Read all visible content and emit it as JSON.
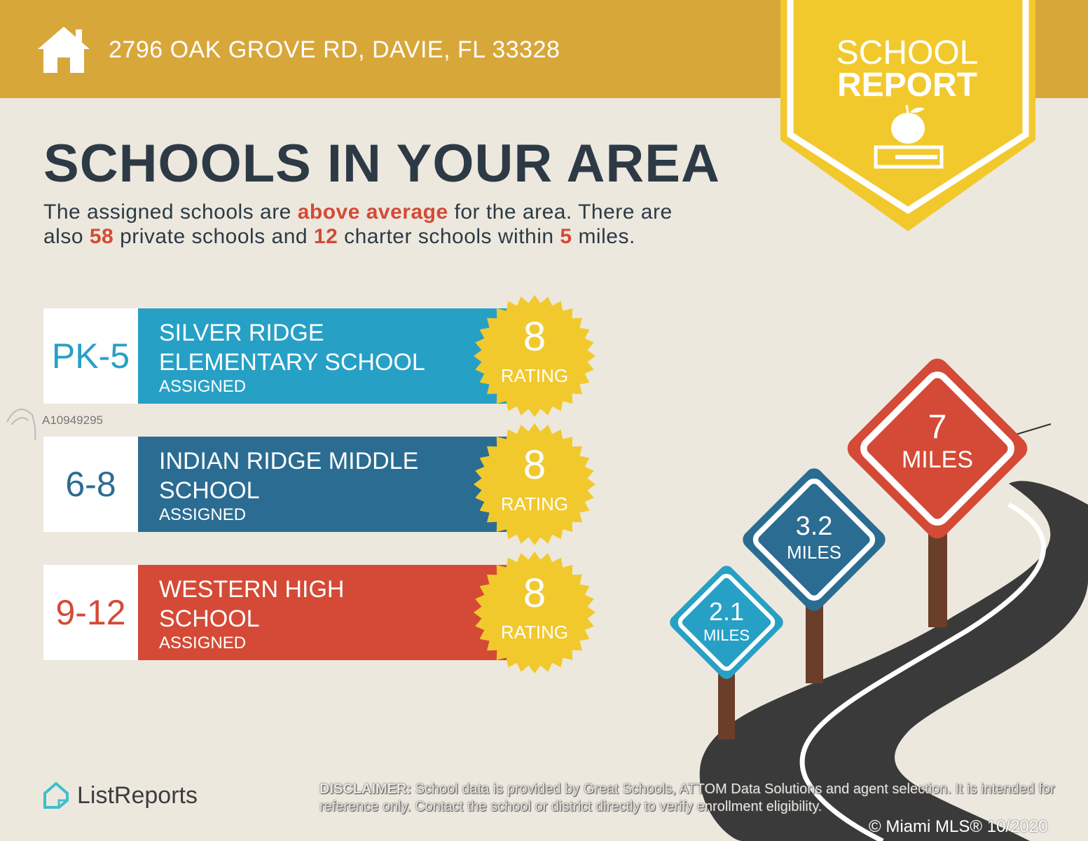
{
  "header": {
    "address": "2796 OAK GROVE RD, DAVIE, FL 33328",
    "icon": "house-icon",
    "color": "#d8a73a"
  },
  "banner": {
    "line1": "SCHOOL",
    "line2": "REPORT",
    "icon": "apple-on-book-icon",
    "color": "#f2c92c"
  },
  "title": "SCHOOLS IN YOUR AREA",
  "summary": {
    "p1": "The assigned schools are ",
    "highlight": "above average",
    "p2": " for the area. There are",
    "p3": "also ",
    "private_count": "58",
    "p4": " private schools and ",
    "charter_count": "12",
    "p5": " charter schools within ",
    "miles": "5",
    "p6": " miles."
  },
  "schools": [
    {
      "grades": "PK-5",
      "name1": "SILVER RIDGE",
      "name2": "ELEMENTARY SCHOOL",
      "status": "ASSIGNED",
      "rating": "8",
      "rating_label": "RATING",
      "color": "#27a0c6"
    },
    {
      "grades": "6-8",
      "name1": "INDIAN RIDGE MIDDLE",
      "name2": "SCHOOL",
      "status": "ASSIGNED",
      "rating": "8",
      "rating_label": "RATING",
      "color": "#2b6c92"
    },
    {
      "grades": "9-12",
      "name1": "WESTERN HIGH",
      "name2": "SCHOOL",
      "status": "ASSIGNED",
      "rating": "8",
      "rating_label": "RATING",
      "color": "#d44a36"
    }
  ],
  "distances": [
    {
      "value": "2.1",
      "unit": "MILES",
      "color": "#27a0c6"
    },
    {
      "value": "3.2",
      "unit": "MILES",
      "color": "#2b6c92"
    },
    {
      "value": "7",
      "unit": "MILES",
      "color": "#d44a36"
    }
  ],
  "watermark": "A10949295",
  "logo": "ListReports",
  "disclaimer": {
    "label": "DISCLAIMER:",
    "text": " School data is provided by Great Schools, ATTOM Data Solutions and agent selection. It is intended for reference only. Contact the school or district directly to verify enrollment eligibility."
  },
  "copyright": "© Miami MLS® 10/2020"
}
